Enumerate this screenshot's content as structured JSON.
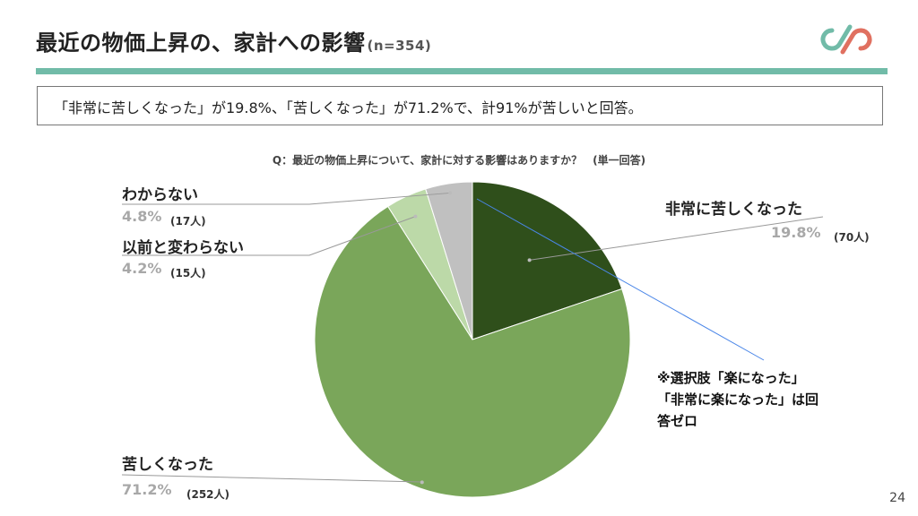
{
  "header": {
    "title": "最近の物価上昇の、家計への影響",
    "sample": "(n=354)"
  },
  "summary": "「非常に苦しくなった」が19.8%、「苦しくなった」が71.2%で、計91%が苦しいと回答。",
  "question": "Q：最近の物価上昇について、家計に対する影響はありますか？　(単一回答)",
  "note": [
    "※選択肢「楽になった」",
    "「非常に楽になった」は回",
    "答ゼロ"
  ],
  "page_number": "24",
  "colors": {
    "accent_bar": "#71bba8",
    "logo_teal": "#71bba8",
    "logo_red": "#e07060",
    "leader_blue": "#4a86e8"
  },
  "chart_data": {
    "type": "pie",
    "title": "",
    "slices": [
      {
        "label": "非常に苦しくなった",
        "value": 19.8,
        "percent_text": "19.8%",
        "count_text": "(70人)",
        "color": "#2f4f1b"
      },
      {
        "label": "苦しくなった",
        "value": 71.2,
        "percent_text": "71.2%",
        "count_text": "(252人)",
        "color": "#7aa65a"
      },
      {
        "label": "以前と変わらない",
        "value": 4.2,
        "percent_text": "4.2%",
        "count_text": "(15人)",
        "color": "#bcd9a8"
      },
      {
        "label": "わからない",
        "value": 4.8,
        "percent_text": "4.8%",
        "count_text": "(17人)",
        "color": "#c0c0c0"
      }
    ]
  }
}
